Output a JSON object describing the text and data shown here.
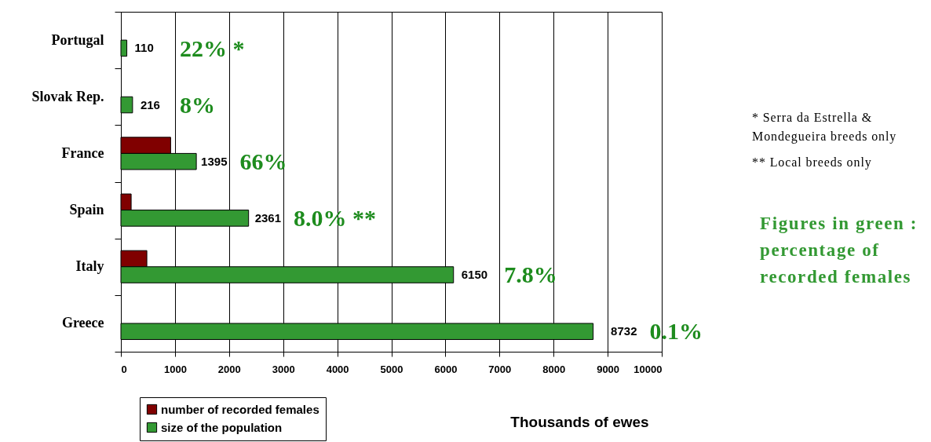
{
  "chart_data": {
    "type": "bar",
    "orientation": "horizontal",
    "categories": [
      "Portugal",
      "Slovak Rep.",
      "France",
      "Spain",
      "Italy",
      "Greece"
    ],
    "series": [
      {
        "name": "number of recorded females",
        "color": "#800000",
        "values": [
          null,
          null,
          920,
          190,
          480,
          null
        ]
      },
      {
        "name": "size of the population",
        "color": "#339933",
        "values": [
          110,
          216,
          1395,
          2361,
          6150,
          8732
        ],
        "value_labels": [
          "110",
          "216",
          "1395",
          "2361",
          "6150",
          "8732"
        ]
      }
    ],
    "xlabel": "Thousands of ewes",
    "xlim": [
      0,
      10000
    ],
    "xticks": [
      0,
      1000,
      2000,
      3000,
      4000,
      5000,
      6000,
      7000,
      8000,
      9000,
      10000
    ],
    "grid": "x",
    "legend": "bottom left",
    "annotations": [
      {
        "text": "22% *",
        "x": 110,
        "y": "Portugal"
      },
      {
        "text": "8%",
        "x": 216,
        "y": "Slovak Rep."
      },
      {
        "text": "66%",
        "x": 1395,
        "y": "France"
      },
      {
        "text": "8.0% **",
        "x": 2361,
        "y": "Spain"
      },
      {
        "text": "7.8%",
        "x": 6150,
        "y": "Italy"
      },
      {
        "text": "0.1%",
        "x": 8732,
        "y": "Greece"
      },
      "* Serra da Estrella & Mondegueira breeds only",
      "** Local breeds only",
      "Figures in green : percentage of recorded females"
    ]
  }
}
